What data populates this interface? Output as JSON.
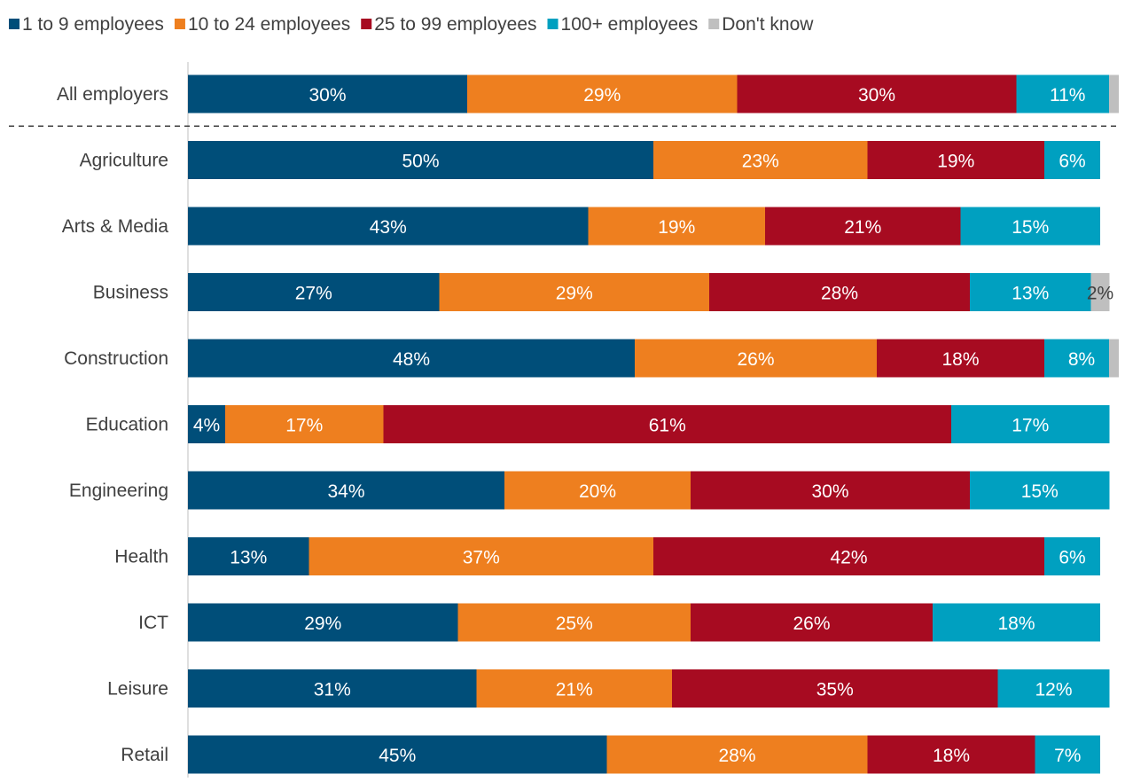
{
  "chart_data": {
    "type": "bar",
    "orientation": "horizontal",
    "stacked": true,
    "percent": true,
    "legend_position": "top-left",
    "grid": false,
    "xlim": [
      0,
      100
    ],
    "categories": [
      "All employers",
      "Agriculture",
      "Arts & Media",
      "Business",
      "Construction",
      "Education",
      "Engineering",
      "Health",
      "ICT",
      "Leisure",
      "Retail"
    ],
    "separator_after": "All employers",
    "series": [
      {
        "name": "1 to 9 employees",
        "color": "#004E79",
        "values": [
          30,
          50,
          43,
          27,
          48,
          4,
          34,
          13,
          29,
          31,
          45
        ],
        "labels": [
          "30%",
          "50%",
          "43%",
          "27%",
          "48%",
          "4%",
          "34%",
          "13%",
          "29%",
          "31%",
          "45%"
        ]
      },
      {
        "name": "10 to 24 employees",
        "color": "#EE7F1F",
        "values": [
          29,
          23,
          19,
          29,
          26,
          17,
          20,
          37,
          25,
          21,
          28
        ],
        "labels": [
          "29%",
          "23%",
          "19%",
          "29%",
          "26%",
          "17%",
          "20%",
          "37%",
          "25%",
          "21%",
          "28%"
        ]
      },
      {
        "name": "25 to 99 employees",
        "color": "#A70B21",
        "values": [
          30,
          19,
          21,
          28,
          18,
          61,
          30,
          42,
          26,
          35,
          18
        ],
        "labels": [
          "30%",
          "19%",
          "21%",
          "28%",
          "18%",
          "61%",
          "30%",
          "42%",
          "26%",
          "35%",
          "18%"
        ]
      },
      {
        "name": "100+ employees",
        "color": "#00A0C0",
        "values": [
          11,
          6,
          15,
          13,
          8,
          17,
          15,
          6,
          18,
          12,
          7
        ],
        "labels": [
          "11%",
          "6%",
          "15%",
          "13%",
          "8%",
          "17%",
          "15%",
          "6%",
          "18%",
          "12%",
          "7%"
        ]
      },
      {
        "name": "Don't know",
        "color": "#BFBFBF",
        "values": [
          0,
          0,
          0,
          2,
          0,
          0,
          0,
          0,
          0,
          0,
          0
        ],
        "labels": [
          "",
          "",
          "",
          "2%",
          "",
          "",
          "",
          "",
          "",
          "",
          ""
        ]
      }
    ]
  }
}
